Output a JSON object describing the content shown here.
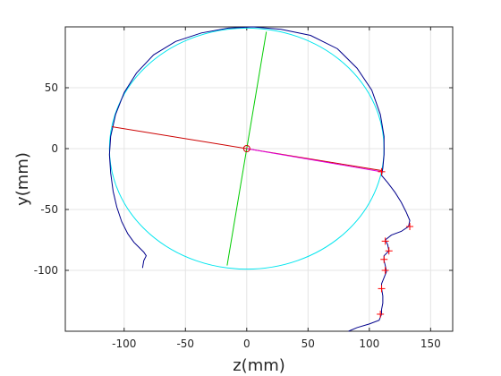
{
  "chart_data": {
    "type": "line",
    "xlabel": "z(mm)",
    "ylabel": "y(mm)",
    "xlim": [
      -148,
      168
    ],
    "ylim": [
      -150,
      100
    ],
    "xticks": [
      -100,
      -50,
      0,
      50,
      100,
      150
    ],
    "yticks": [
      50,
      0,
      -50,
      -100
    ],
    "xtick_labels": [
      "-100",
      "-50",
      "0",
      "50",
      "100",
      "150"
    ],
    "ytick_labels": [
      "50",
      "0",
      "-50",
      "-100"
    ],
    "grid": true,
    "colors": {
      "profile": "#00008b",
      "fitted_circle": "#00e5ee",
      "axis_1": "#00cc00",
      "axis_2": "#cc0000",
      "segment": "#e000e0",
      "markers": "#ff0000",
      "center": "#cc0000"
    },
    "circle": {
      "center": [
        0,
        0
      ],
      "rx": 112,
      "ry": 99
    },
    "profile": [
      [
        -85,
        -98
      ],
      [
        -84,
        -92
      ],
      [
        -82,
        -88
      ],
      [
        -84,
        -85
      ],
      [
        -88,
        -81
      ],
      [
        -92,
        -77
      ],
      [
        -97,
        -70
      ],
      [
        -102,
        -60
      ],
      [
        -106,
        -48
      ],
      [
        -109,
        -35
      ],
      [
        -111,
        -20
      ],
      [
        -112,
        -5
      ],
      [
        -111,
        10
      ],
      [
        -107,
        28
      ],
      [
        -100,
        46
      ],
      [
        -90,
        62
      ],
      [
        -76,
        77
      ],
      [
        -58,
        88
      ],
      [
        -37,
        95
      ],
      [
        -15,
        99
      ],
      [
        5,
        100
      ],
      [
        28,
        98
      ],
      [
        52,
        93
      ],
      [
        74,
        82
      ],
      [
        90,
        66
      ],
      [
        102,
        48
      ],
      [
        109,
        28
      ],
      [
        112,
        10
      ],
      [
        112,
        -5
      ],
      [
        111,
        -16
      ],
      [
        110,
        -22
      ],
      [
        115,
        -28
      ],
      [
        121,
        -36
      ],
      [
        126,
        -44
      ],
      [
        130,
        -52
      ],
      [
        133,
        -59
      ],
      [
        132,
        -64
      ],
      [
        126,
        -68
      ],
      [
        118,
        -71
      ],
      [
        113,
        -75
      ],
      [
        115,
        -79
      ],
      [
        116,
        -84
      ],
      [
        112,
        -88
      ],
      [
        112,
        -92
      ],
      [
        113,
        -96
      ],
      [
        114,
        -101
      ],
      [
        112,
        -106
      ],
      [
        110,
        -111
      ],
      [
        110,
        -115
      ],
      [
        111,
        -121
      ],
      [
        111,
        -127
      ],
      [
        110,
        -132
      ],
      [
        110,
        -136
      ],
      [
        108,
        -141
      ],
      [
        100,
        -144
      ],
      [
        90,
        -147
      ],
      [
        83,
        -150
      ]
    ],
    "axis_1": [
      [
        16,
        96
      ],
      [
        -16,
        -96
      ]
    ],
    "axis_2": [
      [
        -110,
        18
      ],
      [
        110,
        -18
      ]
    ],
    "segment": [
      [
        0,
        0
      ],
      [
        110,
        -19
      ]
    ],
    "center": [
      0,
      0
    ],
    "markers": [
      [
        110,
        -19
      ],
      [
        133,
        -64
      ],
      [
        113,
        -76
      ],
      [
        116,
        -84
      ],
      [
        112,
        -91
      ],
      [
        113,
        -100
      ],
      [
        110,
        -115
      ],
      [
        109,
        -136
      ]
    ]
  }
}
